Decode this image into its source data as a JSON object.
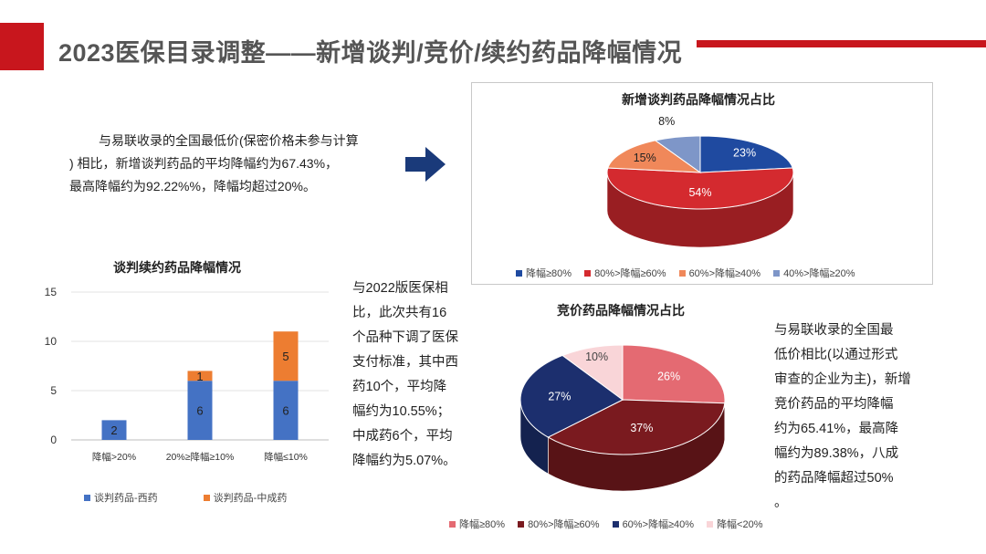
{
  "header": {
    "title": "2023医保目录调整——新增谈判/竞价/续约药品降幅情况"
  },
  "left_text": {
    "lines": [
      "与易联收录的全国最低价(保密价格未参与计算",
      ") 相比，新增谈判药品的平均降幅约为67.43%，",
      "最高降幅约为92.22%%，降幅均超过20%。"
    ]
  },
  "middle_text": {
    "lines": [
      "与2022版医保相",
      "比，此次共有16",
      "个品种下调了医保",
      "支付标准，其中西",
      "药10个，平均降",
      "幅约为10.55%；",
      "中成药6个，平均",
      "降幅约为5.07%。"
    ]
  },
  "right_text": {
    "lines": [
      "与易联收录的全国最",
      "低价相比(以通过形式",
      "审查的企业为主)，新增",
      "竞价药品的平均降幅",
      "约为65.41%，最高降",
      "幅约为89.38%，八成",
      "的药品降幅超过50%",
      "。"
    ]
  },
  "chart_data": [
    {
      "type": "bar",
      "stacked": true,
      "title": "谈判续约药品降幅情况",
      "categories": [
        "降幅>20%",
        "20%≥降幅≥10%",
        "降幅≤10%"
      ],
      "series": [
        {
          "name": "谈判药品-西药",
          "values": [
            2,
            6,
            6
          ],
          "color": "#4472c4"
        },
        {
          "name": "谈判药品-中成药",
          "values": [
            0,
            1,
            5
          ],
          "color": "#ed7d31"
        }
      ],
      "yticks": [
        "0",
        "5",
        "10",
        "15"
      ],
      "ylim": [
        0,
        15
      ],
      "grid": true,
      "legend": "bottom"
    },
    {
      "type": "pie",
      "title": "新增谈判药品降幅情况占比",
      "slices": [
        {
          "label": "降幅≥80%",
          "value": 23,
          "text": "23%",
          "color": "#1f4aa0"
        },
        {
          "label": "80%>降幅≥60%",
          "value": 54,
          "text": "54%",
          "color": "#d42a2f"
        },
        {
          "label": "60%>降幅≥40%",
          "value": 15,
          "text": "15%",
          "color": "#f0885a"
        },
        {
          "label": "40%>降幅≥20%",
          "value": 8,
          "text": "8%",
          "color": "#7e96c8"
        }
      ],
      "legend": "bottom"
    },
    {
      "type": "pie",
      "title": "竞价药品降幅情况占比",
      "slices": [
        {
          "label": "降幅≥80%",
          "value": 26,
          "text": "26%",
          "color": "#e46a72"
        },
        {
          "label": "80%>降幅≥60%",
          "value": 37,
          "text": "37%",
          "color": "#7a1a1f"
        },
        {
          "label": "60%>降幅≥40%",
          "value": 27,
          "text": "27%",
          "color": "#1c2f6e"
        },
        {
          "label": "降幅<20%",
          "value": 10,
          "text": "10%",
          "color": "#f9d5d8"
        }
      ],
      "legend": "bottom"
    }
  ]
}
